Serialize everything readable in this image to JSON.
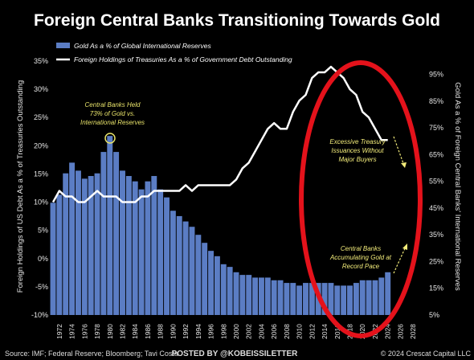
{
  "colors": {
    "background": "#000000",
    "bars": "#5b7dc4",
    "line": "#ffffff",
    "annotation_held": "#e8e36a",
    "annotation_other": "#f3ec7a",
    "ellipse": "#e4121b"
  },
  "chart_data": {
    "type": "bar",
    "title": "Foreign Central Banks Transitioning Towards Gold",
    "y_left_label": "Foreign Holdings of US Debt As a % of Treasuries Outstanding",
    "y_right_label": "Gold As a % of Foreign Central Banks' International Reserves",
    "y_left_ticks": [
      "35%",
      "30%",
      "25%",
      "20%",
      "15%",
      "10%",
      "5%",
      "0%",
      "-5%",
      "-10%"
    ],
    "y_right_ticks": [
      "95%",
      "85%",
      "75%",
      "65%",
      "55%",
      "45%",
      "35%",
      "25%",
      "15%",
      "5%"
    ],
    "x_ticks": [
      "1972",
      "1974",
      "1976",
      "1978",
      "1980",
      "1982",
      "1984",
      "1986",
      "1988",
      "1990",
      "1992",
      "1994",
      "1996",
      "1998",
      "2000",
      "2002",
      "2004",
      "2006",
      "2008",
      "2010",
      "2012",
      "2014",
      "2016",
      "2018",
      "2020",
      "2022",
      "2024",
      "2026",
      "2028"
    ],
    "ylim_left": [
      -10,
      35
    ],
    "ylim_right": [
      5,
      100
    ],
    "xlim": [
      1971,
      2029
    ],
    "legend_placement": "top-left",
    "grid": false,
    "series": [
      {
        "name": "Gold As a % of Global International Reserves",
        "type": "bar",
        "axis": "right",
        "x": [
          1971,
          1972,
          1973,
          1974,
          1975,
          1976,
          1977,
          1978,
          1979,
          1980,
          1981,
          1982,
          1983,
          1984,
          1985,
          1986,
          1987,
          1988,
          1989,
          1990,
          1991,
          1992,
          1993,
          1994,
          1995,
          1996,
          1997,
          1998,
          1999,
          2000,
          2001,
          2002,
          2003,
          2004,
          2005,
          2006,
          2007,
          2008,
          2009,
          2010,
          2011,
          2012,
          2013,
          2014,
          2015,
          2016,
          2017,
          2018,
          2019,
          2020,
          2021,
          2022,
          2023,
          2024
        ],
        "values": [
          47,
          50,
          58,
          62,
          59,
          56,
          57,
          58,
          66,
          72,
          66,
          59,
          57,
          55,
          52,
          55,
          57,
          52,
          49,
          44,
          42,
          40,
          38,
          35,
          32,
          29,
          27,
          24,
          23,
          21,
          20,
          20,
          19,
          19,
          19,
          18,
          18,
          17,
          17,
          16,
          17,
          17,
          17,
          17,
          17,
          16,
          16,
          16,
          17,
          18,
          18,
          18,
          19,
          21
        ]
      },
      {
        "name": "Foreign Holdings of Treasuries As a % of Government Debt Outstanding",
        "type": "line",
        "axis": "left",
        "x": [
          1971,
          1972,
          1973,
          1974,
          1975,
          1976,
          1977,
          1978,
          1979,
          1980,
          1981,
          1982,
          1983,
          1984,
          1985,
          1986,
          1987,
          1988,
          1989,
          1990,
          1991,
          1992,
          1993,
          1994,
          1995,
          1996,
          1997,
          1998,
          1999,
          2000,
          2001,
          2002,
          2003,
          2004,
          2005,
          2006,
          2007,
          2008,
          2009,
          2010,
          2011,
          2012,
          2013,
          2014,
          2015,
          2016,
          2017,
          2018,
          2019,
          2020,
          2021,
          2022,
          2023,
          2024
        ],
        "values": [
          10,
          12,
          11,
          11,
          10,
          10,
          11,
          12,
          11,
          11,
          11,
          10,
          10,
          10,
          11,
          11,
          12,
          12,
          12,
          12,
          12,
          13,
          12,
          13,
          13,
          13,
          13,
          13,
          13,
          14,
          16,
          17,
          19,
          21,
          23,
          24,
          23,
          23,
          26,
          28,
          29,
          32,
          33,
          33,
          34,
          33,
          32,
          30,
          29,
          26,
          25,
          23,
          21,
          21
        ]
      }
    ],
    "annotations": [
      "Central Banks Held",
      "73% of Gold vs.",
      "International Reserves",
      "Excessive Treasury",
      "Issuances Without",
      "Major Buyers",
      "Central Banks",
      "Accumulating Gold at",
      "Record Pace"
    ]
  },
  "footer": {
    "source": "Source: IMF; Federal Reserve; Bloomberg; Tavi Costa",
    "posted_by": "POSTED BY @KOBEISSILETTER",
    "copyright": "© 2024 Crescat Capital LLC"
  }
}
